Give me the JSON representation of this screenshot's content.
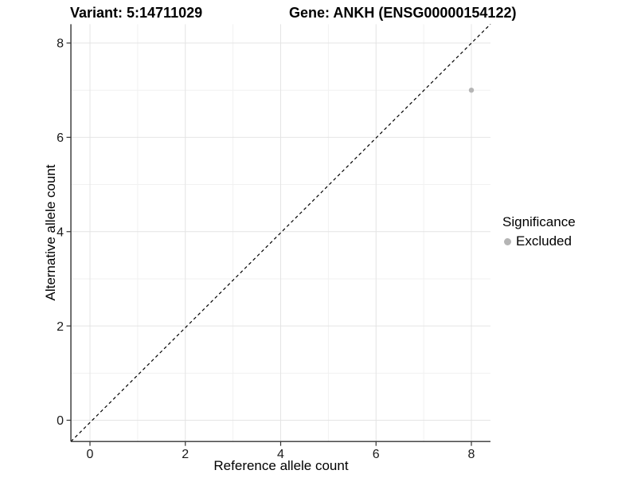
{
  "chart_data": {
    "type": "scatter",
    "title_left": "Variant: 5:14711029",
    "title_right": "Gene: ANKH (ENSG00000154122)",
    "xlabel": "Reference allele count",
    "ylabel": "Alternative allele count",
    "xlim": [
      -0.4,
      8.4
    ],
    "ylim": [
      -0.4,
      8.4
    ],
    "xticks": [
      0,
      2,
      4,
      6,
      8
    ],
    "yticks": [
      0,
      2,
      4,
      6,
      8
    ],
    "minor_xticks": [
      1,
      3,
      5,
      7
    ],
    "minor_yticks": [
      1,
      3,
      5,
      7
    ],
    "grid": "major and minor, light gray on white",
    "legend_position": "right",
    "reference_line": {
      "type": "identity y=x",
      "style": "dashed",
      "color": "#000000"
    },
    "legend": {
      "title": "Significance",
      "items": [
        {
          "label": "Excluded",
          "color": "#b5b5b5"
        }
      ]
    },
    "series": [
      {
        "name": "Excluded",
        "color": "#b5b5b5",
        "marker": "circle",
        "points": [
          {
            "x": 8,
            "y": 7
          }
        ]
      }
    ]
  },
  "styles": {
    "major_grid_color": "#e4e4e4",
    "minor_grid_color": "#f1f1f1",
    "axis_line_color": "#333333",
    "tick_color": "#333333",
    "tick_label_color": "#1a1a1a",
    "background": "#ffffff"
  }
}
